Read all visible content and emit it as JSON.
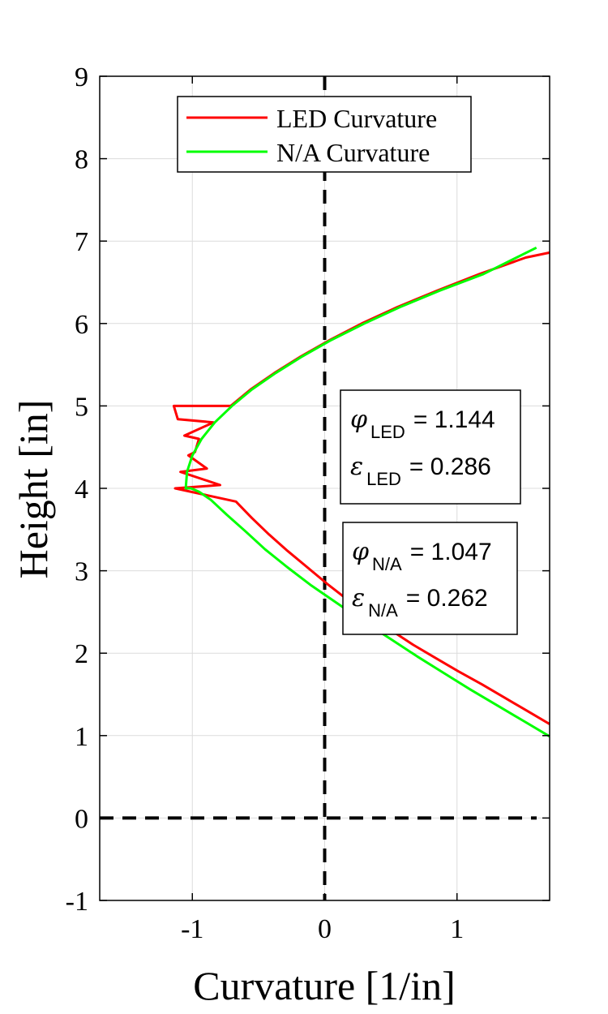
{
  "chart_data": {
    "type": "line",
    "xlabel": "Curvature  [1/in]",
    "ylabel": "Height [in]",
    "xlim": [
      -1.7,
      1.7
    ],
    "ylim": [
      -1,
      9
    ],
    "xticks": [
      -1,
      0,
      1
    ],
    "xtick_labels": [
      "-1",
      "0",
      "1"
    ],
    "yticks": [
      -1,
      0,
      1,
      2,
      3,
      4,
      5,
      6,
      7,
      8,
      9
    ],
    "ytick_labels": [
      "-1",
      "0",
      "1",
      "2",
      "3",
      "4",
      "5",
      "6",
      "7",
      "8",
      "9"
    ],
    "grid": true,
    "legend_position": "top-center",
    "series": [
      {
        "name": "LED Curvature",
        "color": "#ff0000",
        "x": [
          1.7,
          1.53,
          1.36,
          1.19,
          1.01,
          0.84,
          0.67,
          0.5,
          0.34,
          0.18,
          0.02,
          -0.13,
          -0.28,
          -0.42,
          -0.55,
          -0.67,
          -0.79,
          -0.89,
          -0.98,
          -1.06,
          -1.11,
          -1.14,
          -1.13,
          -1.09,
          -1.03,
          -0.95,
          -0.84,
          -0.71,
          -0.56,
          -0.38,
          -0.18,
          0.04,
          0.28,
          0.55,
          0.85,
          1.17,
          1.52,
          1.7
        ],
        "y": [
          1.14,
          1.3,
          1.46,
          1.62,
          1.78,
          1.94,
          2.1,
          2.28,
          2.46,
          2.64,
          2.84,
          3.04,
          3.24,
          3.44,
          3.64,
          3.84,
          4.04,
          4.24,
          4.44,
          4.64,
          4.84,
          5.0,
          4.0,
          4.2,
          4.4,
          4.6,
          4.8,
          5.0,
          5.2,
          5.4,
          5.6,
          5.8,
          6.0,
          6.2,
          6.4,
          6.6,
          6.8,
          6.86
        ]
      },
      {
        "name": "N/A Curvature",
        "color": "#00ff00",
        "x": [
          1.7,
          1.5,
          1.3,
          1.1,
          0.9,
          0.7,
          0.5,
          0.3,
          0.1,
          -0.1,
          -0.28,
          -0.45,
          -0.6,
          -0.74,
          -0.86,
          -0.95,
          -1.01,
          -1.05,
          -1.04,
          -1.0,
          -0.93,
          -0.83,
          -0.7,
          -0.55,
          -0.37,
          -0.17,
          0.05,
          0.3,
          0.57,
          0.87,
          1.2,
          1.6
        ],
        "y": [
          0.99,
          1.18,
          1.37,
          1.56,
          1.76,
          1.96,
          2.17,
          2.38,
          2.6,
          2.82,
          3.04,
          3.26,
          3.48,
          3.68,
          3.86,
          3.96,
          4.0,
          4.0,
          4.2,
          4.4,
          4.6,
          4.8,
          5.0,
          5.2,
          5.4,
          5.6,
          5.8,
          6.0,
          6.2,
          6.4,
          6.6,
          6.92
        ]
      }
    ],
    "reference_lines": [
      {
        "orientation": "vertical",
        "value": 0,
        "style": "dashed",
        "color": "#000000"
      },
      {
        "orientation": "horizontal",
        "value": 0,
        "style": "dashed",
        "color": "#000000"
      }
    ],
    "annotations": [
      {
        "lines": [
          {
            "symbol": "φ",
            "subscript": "LED",
            "text": "= 1.144"
          },
          {
            "symbol": "ε",
            "subscript": "LED",
            "text": "= 0.286"
          }
        ]
      },
      {
        "lines": [
          {
            "symbol": "φ",
            "subscript": "N/A",
            "text": "= 1.047"
          },
          {
            "symbol": "ε",
            "subscript": "N/A",
            "text": "= 0.262"
          }
        ]
      }
    ]
  }
}
